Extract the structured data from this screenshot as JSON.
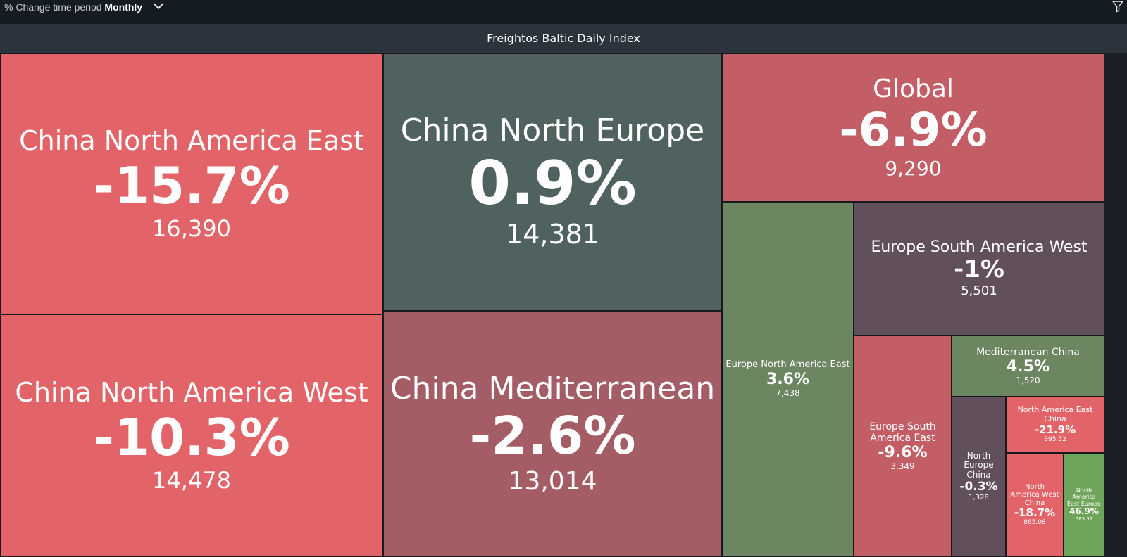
{
  "toolbar": {
    "period_prefix": "% Change time period",
    "period_value": "Monthly",
    "filter_icon": "filter-icon",
    "dropdown_icon": "chevron-down-icon"
  },
  "chart_data": {
    "type": "treemap",
    "title": "Freightos Baltic Daily Index",
    "colors": {
      "negative": "#e26468",
      "neutral": "#506260",
      "positive": "#6b8661",
      "dark": "#614f5c",
      "muted_negative": "#a55d65",
      "global": "#c45e66"
    },
    "tiles": [
      {
        "name": "China North America East",
        "change": "-15.7%",
        "value": "16,390",
        "change_num": -15.7,
        "value_num": 16390,
        "color": "#e26468"
      },
      {
        "name": "China North America West",
        "change": "-10.3%",
        "value": "14,478",
        "change_num": -10.3,
        "value_num": 14478,
        "color": "#e26468"
      },
      {
        "name": "China North Europe",
        "change": "0.9%",
        "value": "14,381",
        "change_num": 0.9,
        "value_num": 14381,
        "color": "#506260"
      },
      {
        "name": "China Mediterranean",
        "change": "-2.6%",
        "value": "13,014",
        "change_num": -2.6,
        "value_num": 13014,
        "color": "#a55d65"
      },
      {
        "name": "Global",
        "change": "-6.9%",
        "value": "9,290",
        "change_num": -6.9,
        "value_num": 9290,
        "color": "#c45e66"
      },
      {
        "name": "Europe North America East",
        "change": "3.6%",
        "value": "7,438",
        "change_num": 3.6,
        "value_num": 7438,
        "color": "#6b8661"
      },
      {
        "name": "Europe South America West",
        "change": "-1%",
        "value": "5,501",
        "change_num": -1,
        "value_num": 5501,
        "color": "#614f5c"
      },
      {
        "name": "Europe South America East",
        "change": "-9.6%",
        "value": "3,349",
        "change_num": -9.6,
        "value_num": 3349,
        "color": "#c45e66"
      },
      {
        "name": "Mediterranean China",
        "change": "4.5%",
        "value": "1,520",
        "change_num": 4.5,
        "value_num": 1520,
        "color": "#6b8661"
      },
      {
        "name": "North Europe China",
        "change": "-0.3%",
        "value": "1,328",
        "change_num": -0.3,
        "value_num": 1328,
        "color": "#614f5c"
      },
      {
        "name": "North America East China",
        "change": "-21.9%",
        "value": "895.52",
        "change_num": -21.9,
        "value_num": 895.52,
        "color": "#e26468"
      },
      {
        "name": "North America West China",
        "change": "-18.7%",
        "value": "865.08",
        "change_num": -18.7,
        "value_num": 865.08,
        "color": "#e26468"
      },
      {
        "name": "North America East Europe",
        "change": "46.9%",
        "value": "583.37",
        "change_num": 46.9,
        "value_num": 583.37,
        "color": "#6ea55a"
      }
    ]
  }
}
